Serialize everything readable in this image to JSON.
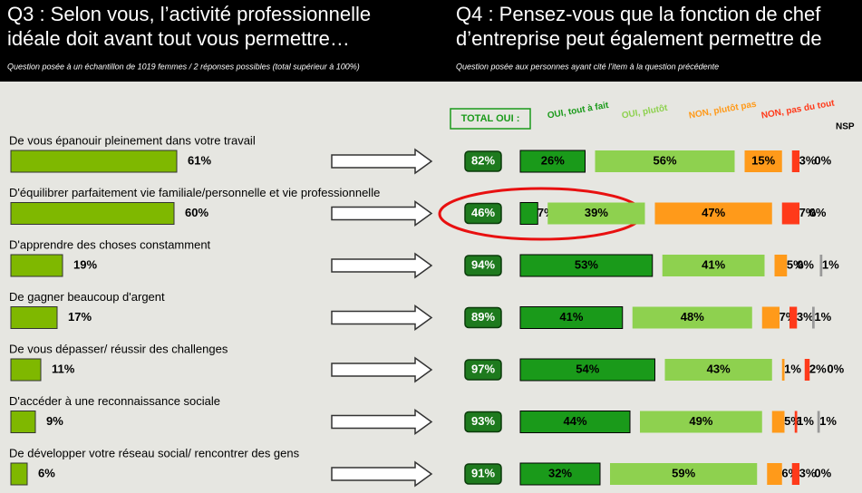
{
  "header": {
    "q3_title": [
      "Q3 : Selon vous, l’activité professionnelle",
      "idéale doit avant tout vous permettre…"
    ],
    "q3_note": "Question posée à un échantillon de 1019 femmes / 2 réponses possibles (total supérieur à 100%)",
    "q4_title": [
      "Q4 : Pensez-vous que la fonction de chef",
      "d’entreprise peut également permettre de"
    ],
    "q4_note": "Question posée aux personnes ayant cité l’item à la question précédente"
  },
  "q3": {
    "color": "#7fb800",
    "items": [
      {
        "label": "De vous épanouir pleinement dans votre travail",
        "value": 61,
        "value_label": "61%"
      },
      {
        "label": "D'équilibrer parfaitement vie familiale/personnelle et vie professionnelle",
        "value": 60,
        "value_label": "60%"
      },
      {
        "label": "D'apprendre des choses constamment",
        "value": 19,
        "value_label": "19%"
      },
      {
        "label": "De gagner beaucoup d'argent",
        "value": 17,
        "value_label": "17%"
      },
      {
        "label": "De vous dépasser/ réussir des challenges",
        "value": 11,
        "value_label": "11%"
      },
      {
        "label": "D'accéder à une reconnaissance sociale",
        "value": 9,
        "value_label": "9%"
      },
      {
        "label": "De développer votre réseau social/ rencontrer des gens",
        "value": 6,
        "value_label": "6%"
      }
    ]
  },
  "q4": {
    "total_title": "TOTAL OUI :",
    "total_color": "#1e7a1e",
    "legend": [
      {
        "name": "OUI, tout à fait",
        "color": "#1a9a1a"
      },
      {
        "name": "OUI, plutôt",
        "color": "#8ed14f"
      },
      {
        "name": "NON, plutôt pas",
        "color": "#ff9a1a"
      },
      {
        "name": "NON, pas du tout",
        "color": "#ff3a1a"
      },
      {
        "name": "NSP",
        "color": "#999999"
      }
    ],
    "rows": [
      {
        "total": 82,
        "total_label": "82%",
        "values": [
          26,
          56,
          15,
          3,
          0
        ],
        "value_labels": [
          "26%",
          "56%",
          "15%",
          "3%",
          "0%"
        ]
      },
      {
        "total": 46,
        "total_label": "46%",
        "values": [
          7,
          39,
          47,
          7,
          0
        ],
        "value_labels": [
          "7%",
          "39%",
          "47%",
          "7%",
          "0%"
        ]
      },
      {
        "total": 94,
        "total_label": "94%",
        "values": [
          53,
          41,
          5,
          0,
          1
        ],
        "value_labels": [
          "53%",
          "41%",
          "5%",
          "0%",
          "1%"
        ]
      },
      {
        "total": 89,
        "total_label": "89%",
        "values": [
          41,
          48,
          7,
          3,
          1
        ],
        "value_labels": [
          "41%",
          "48%",
          "7%",
          "3%",
          "1%"
        ]
      },
      {
        "total": 97,
        "total_label": "97%",
        "values": [
          54,
          43,
          1,
          2,
          0
        ],
        "value_labels": [
          "54%",
          "43%",
          "1%",
          "2%",
          "0%"
        ]
      },
      {
        "total": 93,
        "total_label": "93%",
        "values": [
          44,
          49,
          5,
          1,
          1
        ],
        "value_labels": [
          "44%",
          "49%",
          "5%",
          "1%",
          "1%"
        ]
      },
      {
        "total": 91,
        "total_label": "91%",
        "values": [
          32,
          59,
          6,
          3,
          0
        ],
        "value_labels": [
          "32%",
          "59%",
          "6%",
          "3%",
          "0%"
        ]
      }
    ]
  }
}
